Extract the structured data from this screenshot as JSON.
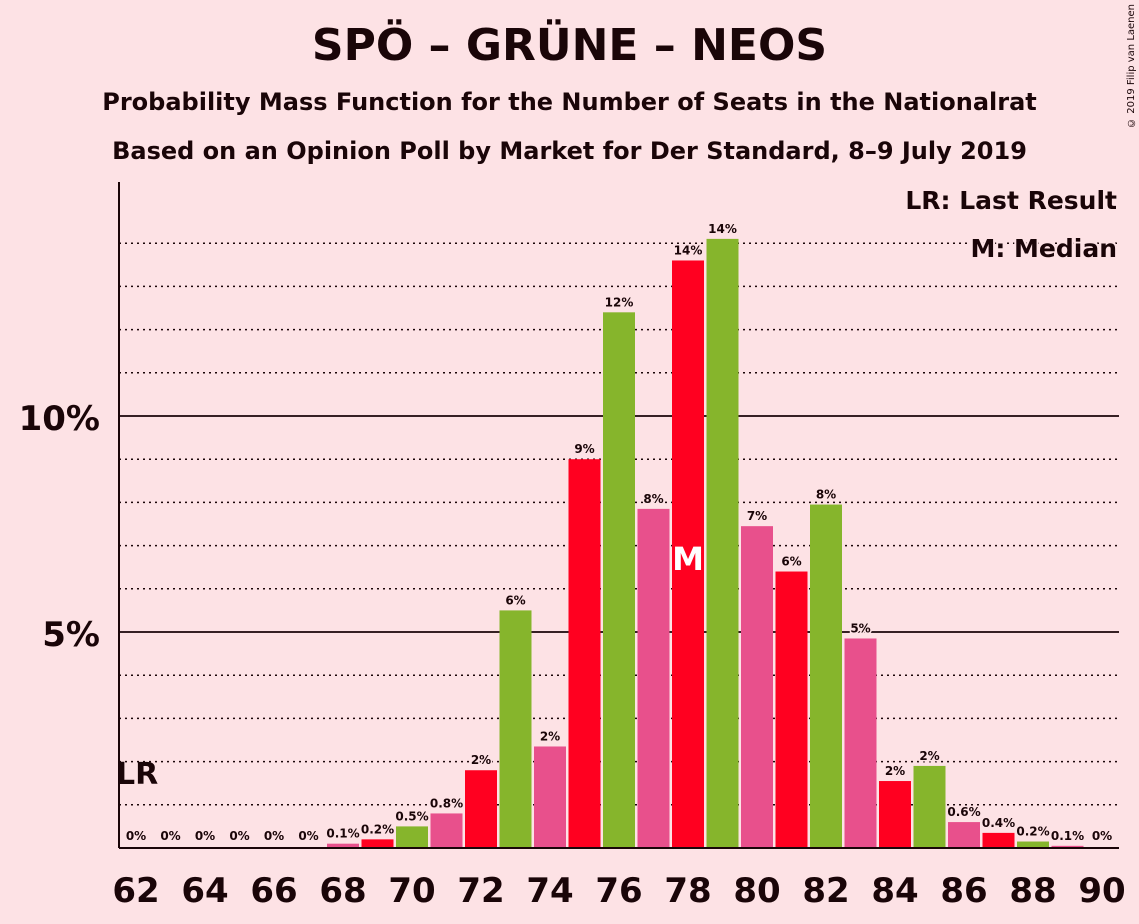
{
  "title": "SPÖ – GRÜNE – NEOS",
  "subtitle1": "Probability Mass Function for the Number of Seats in the Nationalrat",
  "subtitle2": "Based on an Opinion Poll by Market for Der Standard, 8–9 July 2019",
  "copyright": "© 2019 Filip van Laenen",
  "legend": {
    "lr": "LR: Last Result",
    "m": "M: Median"
  },
  "colors": {
    "background": "#fde2e5",
    "red": "#ff0020",
    "green": "#86b52c",
    "pink": "#e8508c",
    "text": "#1a0508"
  },
  "chart_data": {
    "type": "bar",
    "x": [
      62,
      63,
      64,
      65,
      66,
      67,
      68,
      69,
      70,
      71,
      72,
      73,
      74,
      75,
      76,
      77,
      78,
      79,
      80,
      81,
      82,
      83,
      84,
      85,
      86,
      87,
      88,
      89,
      90
    ],
    "values": [
      0,
      0,
      0,
      0,
      0,
      0,
      0.1,
      0.2,
      0.5,
      0.8,
      1.8,
      5.5,
      2.35,
      9.0,
      12.4,
      7.85,
      13.6,
      14.1,
      7.45,
      6.4,
      7.95,
      4.85,
      1.55,
      1.9,
      0.6,
      0.35,
      0.15,
      0.05,
      0
    ],
    "labels": [
      "0%",
      "0%",
      "0%",
      "0%",
      "0%",
      "0%",
      "0.1%",
      "0.2%",
      "0.5%",
      "0.8%",
      "2%",
      "6%",
      "2%",
      "9%",
      "12%",
      "8%",
      "14%",
      "14%",
      "7%",
      "6%",
      "8%",
      "5%",
      "2%",
      "2%",
      "0.6%",
      "0.4%",
      "0.2%",
      "0.1%",
      "0%"
    ],
    "bar_colors": [
      "red",
      "green",
      "pink",
      "red",
      "green",
      "pink",
      "pink",
      "red",
      "green",
      "pink",
      "red",
      "green",
      "pink",
      "red",
      "green",
      "pink",
      "red",
      "green",
      "pink",
      "red",
      "green",
      "pink",
      "red",
      "green",
      "pink",
      "red",
      "green",
      "pink",
      "red"
    ],
    "x_ticks": [
      62,
      64,
      66,
      68,
      70,
      72,
      74,
      76,
      78,
      80,
      82,
      84,
      86,
      88,
      90
    ],
    "y_ticks": [
      {
        "value": 5,
        "label": "5%"
      },
      {
        "value": 10,
        "label": "10%"
      }
    ],
    "ylim": [
      0,
      15.4
    ],
    "gridlines": [
      1,
      2,
      3,
      4,
      6,
      7,
      8,
      9,
      11,
      12,
      13,
      14
    ],
    "last_result_seat": 62,
    "last_result_marker": "LR",
    "median_seat": 78,
    "median_marker": "M"
  }
}
